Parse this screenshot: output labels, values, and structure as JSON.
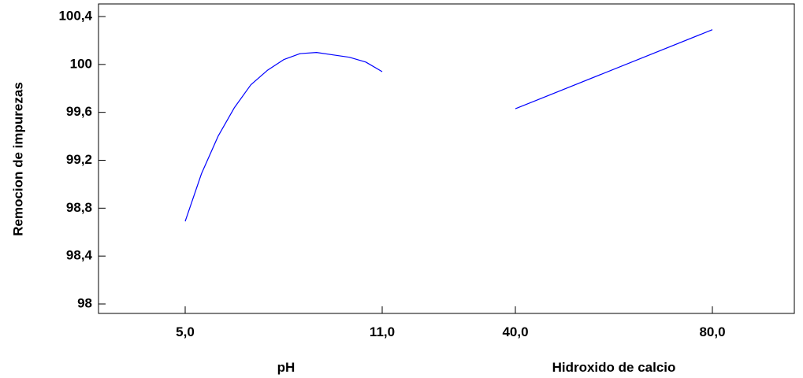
{
  "chart_data": {
    "type": "line",
    "ylabel": "Remocion de impurezas",
    "ylim": [
      98,
      100.4
    ],
    "y_ticks": [
      98,
      98.4,
      98.8,
      99.2,
      99.6,
      100,
      100.4
    ],
    "y_tick_labels": [
      "98",
      "98,4",
      "98,8",
      "99,2",
      "99,6",
      "100",
      "100,4"
    ],
    "grid": false,
    "line_color": "#0000ff",
    "panels": [
      {
        "xlabel": "pH",
        "xlim": [
          5.0,
          11.0
        ],
        "x_tick_labels": [
          "5,0",
          "11,0"
        ],
        "series": [
          {
            "x": [
              5.0,
              5.5,
              6.0,
              6.5,
              7.0,
              7.5,
              8.0,
              8.5,
              9.0,
              9.5,
              10.0,
              10.5,
              11.0
            ],
            "values": [
              98.69,
              99.09,
              99.4,
              99.64,
              99.83,
              99.95,
              100.04,
              100.09,
              100.1,
              100.08,
              100.06,
              100.02,
              99.94
            ]
          }
        ]
      },
      {
        "xlabel": "Hidroxido de calcio",
        "xlim": [
          40.0,
          80.0
        ],
        "x_tick_labels": [
          "40,0",
          "80,0"
        ],
        "series": [
          {
            "x": [
              40.0,
              80.0
            ],
            "values": [
              99.63,
              100.29
            ]
          }
        ]
      }
    ]
  }
}
